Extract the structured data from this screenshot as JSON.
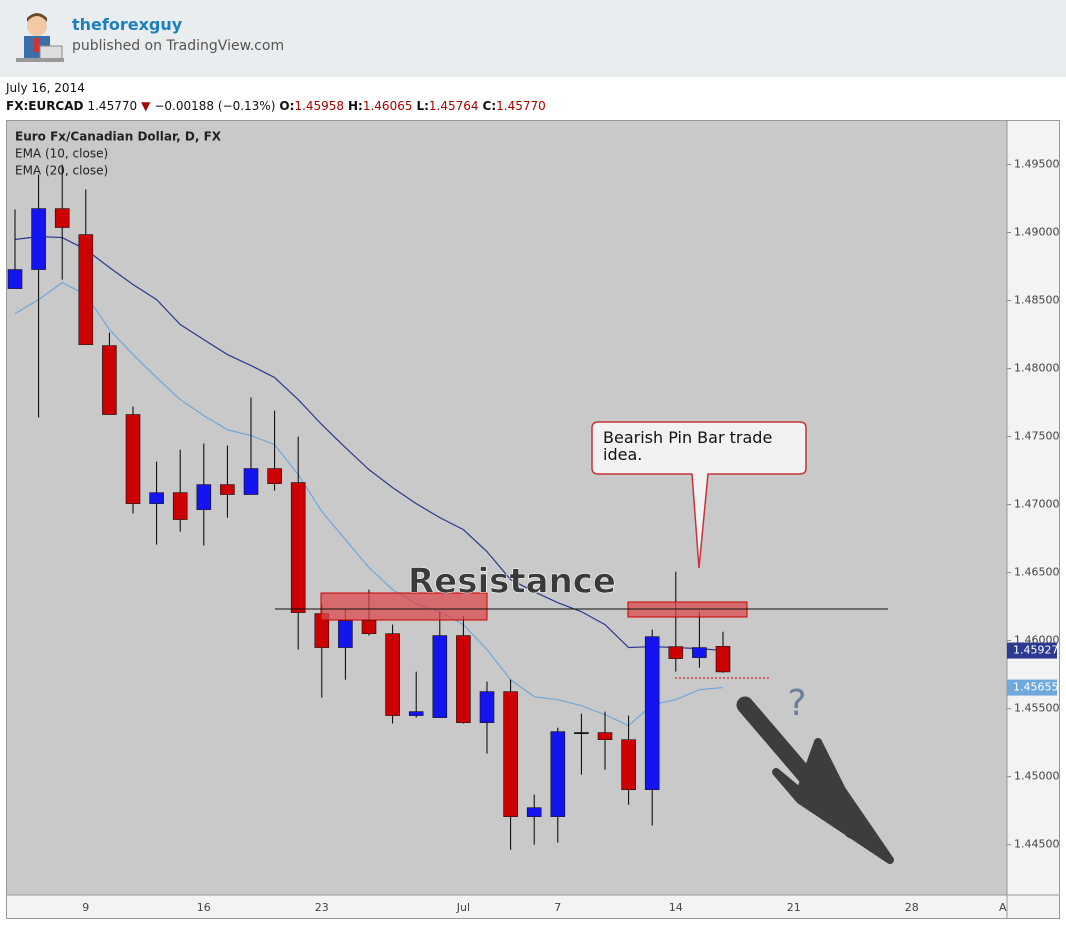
{
  "header": {
    "author": "theforexguy",
    "published": "published on TradingView.com"
  },
  "date": "July 16, 2014",
  "quote": {
    "symbol": "FX:EURCAD",
    "last": "1.45770",
    "change": "−0.00188 (−0.13%)",
    "open_label": "O:",
    "open": "1.45958",
    "high_label": "H:",
    "high": "1.46065",
    "low_label": "L:",
    "low": "1.45764",
    "close_label": "C:",
    "close": "1.45770"
  },
  "chart_data": {
    "type": "candlestick",
    "title": "Euro Fx/Canadian Dollar, D, FX",
    "categories": [
      null,
      null,
      null,
      "9",
      null,
      null,
      null,
      null,
      "16",
      null,
      null,
      null,
      null,
      "23",
      null,
      null,
      null,
      null,
      null,
      "Jul",
      null,
      null,
      null,
      "7",
      null,
      null,
      null,
      null,
      "14",
      null,
      null,
      null,
      null,
      "21",
      null,
      null,
      null,
      null,
      "28",
      null,
      null,
      null,
      "Au"
    ],
    "open": [
      1.48588,
      1.48728,
      1.49176,
      1.48985,
      1.48169,
      1.47662,
      1.47007,
      1.47088,
      1.46963,
      1.47147,
      1.47074,
      1.47265,
      1.47162,
      1.46199,
      1.45949,
      1.46147,
      1.46051,
      1.45449,
      1.45434,
      1.46037,
      1.45397,
      1.45625,
      1.44706,
      1.44706,
      1.45324,
      1.45324,
      1.45272,
      1.44904,
      1.45956,
      1.45875,
      1.45958,
      null,
      null,
      null,
      null,
      null,
      null,
      null,
      null,
      null,
      null,
      null,
      null
    ],
    "high": [
      1.49169,
      1.49426,
      1.495,
      1.49316,
      1.48265,
      1.47721,
      1.47316,
      1.47404,
      1.47449,
      1.47434,
      1.47787,
      1.47691,
      1.475,
      1.46272,
      1.46228,
      1.46375,
      1.46118,
      1.45772,
      1.46213,
      1.46184,
      1.45699,
      1.45713,
      1.44868,
      1.4536,
      1.45463,
      1.45478,
      1.45449,
      1.46081,
      1.46507,
      1.46213,
      1.46065,
      null,
      null,
      null,
      null,
      null,
      null,
      null,
      null,
      null,
      null,
      null,
      null
    ],
    "low": [
      1.48588,
      1.4764,
      1.48654,
      1.48176,
      1.47662,
      1.46934,
      1.46706,
      1.46801,
      1.46699,
      1.46904,
      1.47074,
      1.47103,
      1.45934,
      1.45581,
      1.45713,
      1.46037,
      1.4539,
      1.45434,
      1.45434,
      1.4539,
      1.45169,
      1.44463,
      1.445,
      1.44515,
      1.45015,
      1.45051,
      1.44794,
      1.4464,
      1.45772,
      1.45801,
      1.45764,
      null,
      null,
      null,
      null,
      null,
      null,
      null,
      null,
      null,
      null,
      null,
      null
    ],
    "close": [
      1.48728,
      1.49176,
      1.49037,
      1.48176,
      1.47662,
      1.47007,
      1.47088,
      1.4689,
      1.47147,
      1.47074,
      1.47265,
      1.47154,
      1.46206,
      1.45949,
      1.46147,
      1.46051,
      1.45449,
      1.45478,
      1.46037,
      1.45397,
      1.45625,
      1.44706,
      1.44772,
      1.45331,
      1.45324,
      1.45272,
      1.44904,
      1.46029,
      1.45868,
      1.45949,
      1.4577,
      null,
      null,
      null,
      null,
      null,
      null,
      null,
      null,
      null,
      null,
      null,
      null
    ],
    "up_color": "#1414f0",
    "down_color": "#cc0000",
    "flat_color": "#000000",
    "series": [
      {
        "name": "EMA (10, close)",
        "color": "#6fa8dc",
        "values": [
          1.48404,
          1.48507,
          1.48632,
          1.48544,
          1.48287,
          1.48103,
          1.47934,
          1.47772,
          1.47654,
          1.47551,
          1.47507,
          1.47441,
          1.47221,
          1.46949,
          1.46743,
          1.46537,
          1.46375,
          1.46272,
          1.46213,
          1.46118,
          1.45934,
          1.45713,
          1.45588,
          1.45566,
          1.45522,
          1.45456,
          1.45375,
          1.45529,
          1.45566,
          1.4564,
          1.45655,
          null,
          null,
          null,
          null,
          null,
          null,
          null,
          null,
          null,
          null,
          null,
          null
        ]
      },
      {
        "name": "EMA (20, close)",
        "color": "#2b3990",
        "values": [
          1.48949,
          1.48971,
          1.48963,
          1.48875,
          1.48743,
          1.48618,
          1.48507,
          1.48324,
          1.48213,
          1.48103,
          1.48022,
          1.47934,
          1.47772,
          1.47588,
          1.47419,
          1.47257,
          1.47125,
          1.47007,
          1.46904,
          1.46816,
          1.46654,
          1.46449,
          1.4636,
          1.46279,
          1.46213,
          1.46118,
          1.45949,
          1.45956,
          1.45949,
          1.45941,
          1.45927,
          null,
          null,
          null,
          null,
          null,
          null,
          null,
          null,
          null,
          null,
          null,
          null
        ]
      }
    ],
    "ylim": [
      1.4413,
      1.4982
    ],
    "yticks": [
      {
        "value": 1.445,
        "label": "1.44500"
      },
      {
        "value": 1.45,
        "label": "1.45000"
      },
      {
        "value": 1.455,
        "label": "1.45500"
      },
      {
        "value": 1.46,
        "label": "1.46000"
      },
      {
        "value": 1.465,
        "label": "1.46500"
      },
      {
        "value": 1.47,
        "label": "1.47000"
      },
      {
        "value": 1.475,
        "label": "1.47500"
      },
      {
        "value": 1.48,
        "label": "1.48000"
      },
      {
        "value": 1.485,
        "label": "1.48500"
      },
      {
        "value": 1.49,
        "label": "1.49000"
      },
      {
        "value": 1.495,
        "label": "1.49500"
      }
    ],
    "grid": false,
    "annotations": [
      "Resistance",
      "Bearish Pin Bar trade idea.",
      "?"
    ]
  }
}
